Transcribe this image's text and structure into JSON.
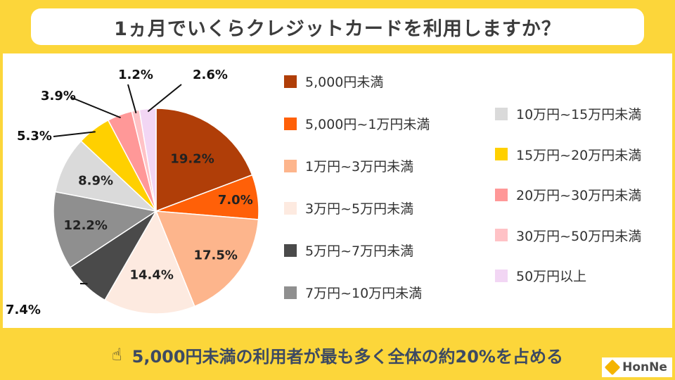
{
  "title": "1ヵ月でいくらクレジットカードを利用しますか？",
  "chart_data": {
    "type": "pie",
    "title": "1ヵ月でいくらクレジットカードを利用しますか？",
    "categories": [
      "5,000円未満",
      "5,000円~1万円未満",
      "1万円~3万円未満",
      "3万円~5万円未満",
      "5万円~7万円未満",
      "7万円~10万円未満",
      "10万円~15万円未満",
      "15万円~20万円未満",
      "20万円~30万円未満",
      "30万円~50万円未満",
      "50万円以上"
    ],
    "values": [
      19.2,
      7.0,
      17.5,
      14.4,
      7.4,
      12.2,
      8.9,
      5.3,
      3.9,
      1.2,
      2.6
    ],
    "labels": [
      "19.2%",
      "7.0%",
      "17.5%",
      "14.4%",
      "7.4%",
      "12.2%",
      "8.9%",
      "5.3%",
      "3.9%",
      "1.2%",
      "2.6%"
    ],
    "colors": [
      "#B03E08",
      "#FF6008",
      "#FDB58C",
      "#FDEAE0",
      "#4A4A4A",
      "#8F8F8F",
      "#DADADA",
      "#FFD000",
      "#FF9898",
      "#FFC2C6",
      "#F2D6F4"
    ],
    "legend_position": "right"
  },
  "footer": {
    "icon": "☝",
    "text": "5,000円未満の利用者が最も多く全体の約20%を占める"
  },
  "logo": {
    "text": "HonNe"
  }
}
